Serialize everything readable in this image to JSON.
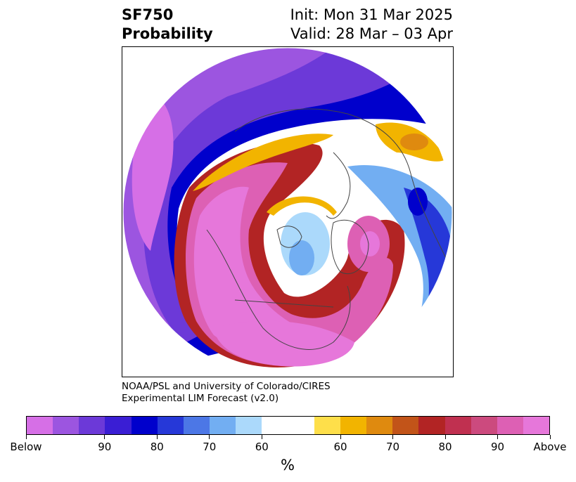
{
  "header": {
    "left_line1": "SF750",
    "left_line2": "Probability",
    "right_line1": "Init: Mon 31 Mar 2025",
    "right_line2": "Valid: 28 Mar – 03 Apr"
  },
  "credit": {
    "line1": "NOAA/PSL and University of Colorado/CIRES",
    "line2": "Experimental LIM Forecast (v2.0)"
  },
  "colorbar": {
    "colors": [
      "#d66fe6",
      "#9c55e0",
      "#6c39d8",
      "#3a1ed4",
      "#0000cc",
      "#2638d8",
      "#4c77e6",
      "#72aef2",
      "#abd9fb",
      "#ffffff",
      "#ffffff",
      "#fedf4a",
      "#f2b400",
      "#df8a0f",
      "#c25419",
      "#b22424",
      "#c03050",
      "#cc4a7e",
      "#dd60b4",
      "#e677da"
    ],
    "tick_labels": [
      "Below",
      "90",
      "80",
      "70",
      "60",
      "60",
      "70",
      "80",
      "90",
      "Above"
    ],
    "units": "%"
  },
  "map": {
    "projection": "north polar stereographic",
    "colors": {
      "below_light": "#d66fe6",
      "below_mid": "#6c39d8",
      "below_dark": "#0000cc",
      "below_pale": "#72aef2",
      "neutral": "#ffffff",
      "above_yellow": "#f2b400",
      "above_orange": "#df8a0f",
      "above_red": "#b22424",
      "above_pink": "#dd60b4",
      "above_light": "#e677da",
      "coastline": "#444444"
    }
  }
}
